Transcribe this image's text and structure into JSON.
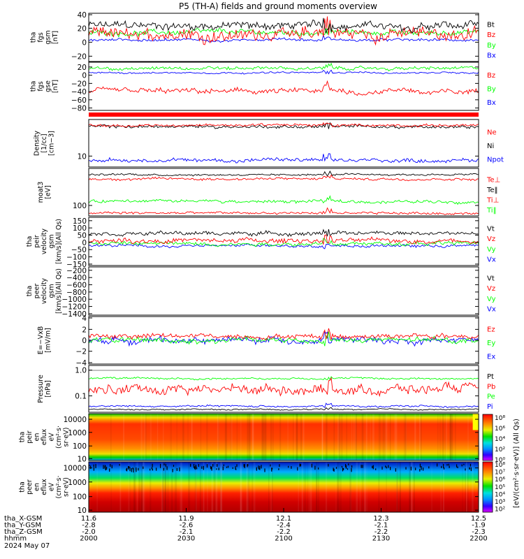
{
  "title": "P5 (TH-A) fields and ground moments overview",
  "date": "2024 May 07",
  "colors": {
    "black": "#000000",
    "red": "#ff0000",
    "green": "#00ff00",
    "blue": "#0000ff"
  },
  "orbit_rows": [
    {
      "label": "tha_X-GSM",
      "values": [
        "11.6",
        "11.9",
        "12.1",
        "12.3",
        "12.5"
      ]
    },
    {
      "label": "tha_Y-GSM",
      "values": [
        "-2.8",
        "-2.6",
        "-2.4",
        "-2.1",
        "-1.9"
      ]
    },
    {
      "label": "tha_Z-GSM",
      "values": [
        "-2.0",
        "-2.1",
        "-2.2",
        "-2.2",
        "-2.3"
      ]
    },
    {
      "label": "hhmm",
      "values": [
        "2000",
        "2030",
        "2100",
        "2130",
        "2200"
      ]
    }
  ],
  "chart_data": [
    {
      "type": "line",
      "ylabel": [
        "tha",
        "fgs",
        "gsm",
        "[nT]"
      ],
      "yticks": [
        "40",
        "20",
        "0",
        "−20"
      ],
      "ylim": [
        -28,
        42
      ],
      "x": {
        "start": "20:00",
        "end": "22:00",
        "unit": "UT"
      },
      "series": [
        {
          "name": "Bt",
          "color": "#000000",
          "level": 24,
          "noise": 9
        },
        {
          "name": "Bz",
          "color": "#ff0000",
          "level": 12,
          "noise": 14
        },
        {
          "name": "By",
          "color": "#00ff00",
          "level": 14,
          "noise": 6
        },
        {
          "name": "Bx",
          "color": "#0000ff",
          "level": 3,
          "noise": 3
        }
      ]
    },
    {
      "type": "line",
      "ylabel": [
        "tha",
        "fgs",
        "gse",
        "[nT]"
      ],
      "yticks": [
        "20",
        "0",
        "−20",
        "−40",
        "−60",
        "−80"
      ],
      "ylim": [
        -90,
        25
      ],
      "series": [
        {
          "name": "Bz",
          "color": "#ff0000",
          "level": -45,
          "noise": 10
        },
        {
          "name": "By",
          "color": "#00ff00",
          "level": 10,
          "noise": 6
        },
        {
          "name": "Bx",
          "color": "#0000ff",
          "level": 0,
          "noise": 3
        }
      ]
    },
    {
      "type": "line",
      "ylabel": [
        "Density",
        "[1/cc]",
        "[cm−3]"
      ],
      "yticks": [
        "10"
      ],
      "scale": "log",
      "series": [
        {
          "name": "Ne",
          "color": "#ff0000"
        },
        {
          "name": "Ni",
          "color": "#000000"
        },
        {
          "name": "Npot",
          "color": "#0000ff"
        }
      ]
    },
    {
      "type": "line",
      "ylabel": [
        "moat3",
        "[eV]"
      ],
      "yticks": [
        "100"
      ],
      "scale": "log",
      "series": [
        {
          "name": "Te⊥",
          "color": "#ff0000"
        },
        {
          "name": "Te‖",
          "color": "#000000"
        },
        {
          "name": "Ti⊥",
          "color": "#ff0000"
        },
        {
          "name": "Ti‖",
          "color": "#00ff00"
        }
      ]
    },
    {
      "type": "line",
      "ylabel": [
        "tha",
        "peir",
        "velocity",
        "gsm",
        "[km/s](All Qs)"
      ],
      "yticks": [
        "150",
        "100",
        "50",
        "0",
        "−50",
        "−100",
        "−150"
      ],
      "ylim": [
        -160,
        170
      ],
      "series": [
        {
          "name": "Vt",
          "color": "#000000",
          "level": 60,
          "noise": 20
        },
        {
          "name": "Vz",
          "color": "#ff0000",
          "level": 10,
          "noise": 25
        },
        {
          "name": "Vy",
          "color": "#00ff00",
          "level": -10,
          "noise": 20
        },
        {
          "name": "Vx",
          "color": "#0000ff",
          "level": -25,
          "noise": 15
        }
      ]
    },
    {
      "type": "line",
      "ylabel": [
        "tha",
        "peer",
        "velocity",
        "gsm",
        "[km/s](All Qs)"
      ],
      "yticks": [
        "−200",
        "−400",
        "−600",
        "−800",
        "−1000",
        "−1200",
        "−1400"
      ],
      "ylim": [
        -1500,
        -100
      ],
      "series": [
        {
          "name": "Vt",
          "color": "#000000"
        },
        {
          "name": "Vz",
          "color": "#ff0000"
        },
        {
          "name": "Vy",
          "color": "#00ff00"
        },
        {
          "name": "Vx",
          "color": "#0000ff"
        }
      ]
    },
    {
      "type": "line",
      "ylabel": [
        "E=−VxB",
        "[mV/m]"
      ],
      "yticks": [
        "4",
        "2",
        "0",
        "−2",
        "−4"
      ],
      "ylim": [
        -4.5,
        4.5
      ],
      "series": [
        {
          "name": "Ez",
          "color": "#ff0000",
          "level": 0.8,
          "noise": 0.7
        },
        {
          "name": "Ey",
          "color": "#00ff00",
          "level": 0,
          "noise": 0.8
        },
        {
          "name": "Ex",
          "color": "#0000ff",
          "level": 0,
          "noise": 0.9
        }
      ]
    },
    {
      "type": "line",
      "ylabel": [
        "Pressure",
        "[nPa]"
      ],
      "yticks": [
        "1.0",
        "0.1"
      ],
      "scale": "log",
      "series": [
        {
          "name": "Pt",
          "color": "#000000"
        },
        {
          "name": "Pb",
          "color": "#ff0000"
        },
        {
          "name": "Pe",
          "color": "#00ff00"
        },
        {
          "name": "Pi",
          "color": "#0000ff"
        }
      ]
    },
    {
      "type": "heatmap",
      "ylabel": [
        "tha",
        "peir",
        "en",
        "eflux",
        "eV",
        "(cm²·s·",
        "sr·eV)"
      ],
      "yticks": [
        "10000",
        "1000",
        "100",
        "10"
      ],
      "scale": "log"
    },
    {
      "type": "heatmap",
      "ylabel": [
        "tha",
        "peer",
        "en",
        "eflux",
        "eV",
        "(cm²·s·",
        "sr·eV)"
      ],
      "yticks": [
        "10000",
        "1000",
        "100",
        "10"
      ],
      "scale": "log"
    }
  ],
  "colorbar": {
    "label": "[eV/(cm²·s·sr·eV)] (All Qs)",
    "ticks_upper": [
      "10⁸",
      "10⁶",
      "10⁴",
      "10²",
      "10⁰"
    ],
    "ticks_lower": [
      "10⁸",
      "10⁷",
      "10⁶",
      "10⁵",
      "10⁴",
      "10³",
      "10²"
    ]
  }
}
